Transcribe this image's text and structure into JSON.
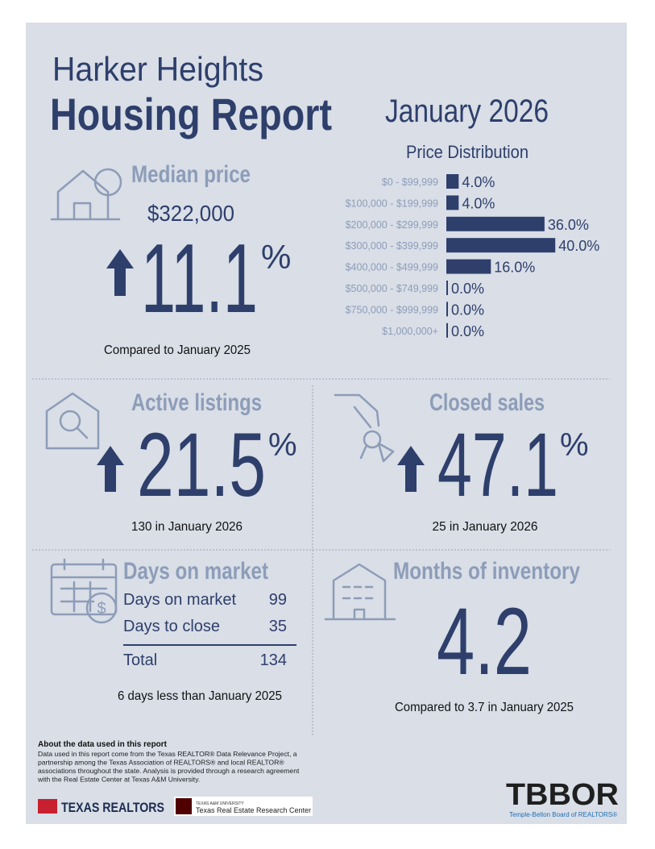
{
  "header": {
    "title_line1": "Harker Heights",
    "title_line2": "Housing Report",
    "period": "January 2026"
  },
  "median_price": {
    "label": "Median price",
    "price": "$322,000",
    "change": 11.1,
    "percent_sign": "%",
    "note": "Compared to January 2025"
  },
  "price_distribution": {
    "title": "Price Distribution",
    "categories": [
      "$0 - $99,999",
      "$100,000 - $199,999",
      "$200,000 - $299,999",
      "$300,000 - $399,999",
      "$400,000 - $499,999",
      "$500,000 - $749,999",
      "$750,000 - $999,999",
      "$1,000,000+"
    ],
    "values": [
      4.0,
      4.0,
      36.0,
      40.0,
      16.0,
      0.0,
      0.0,
      0.0
    ],
    "value_labels": [
      "4.0%",
      "4.0%",
      "36.0%",
      "40.0%",
      "16.0%",
      "0.0%",
      "0.0%",
      "0.0%"
    ],
    "color": "#2e3f6b"
  },
  "active_listings": {
    "label": "Active listings",
    "change": 21.5,
    "percent_sign": "%",
    "note": "130 in January 2026"
  },
  "closed_sales": {
    "label": "Closed sales",
    "change": 47.1,
    "percent_sign": "%",
    "note": "25 in January 2026"
  },
  "days_on_market": {
    "label": "Days on market",
    "rows": [
      [
        "Days on market",
        99
      ],
      [
        "Days to close",
        35
      ]
    ],
    "total": [
      "Total",
      134
    ],
    "note": "6 days less than January 2025"
  },
  "months_of_inventory": {
    "label": "Months of inventory",
    "value": 4.2,
    "note": "Compared to 3.7 in January 2025"
  },
  "footer": {
    "about_title": "About the data used in this report",
    "about_lines": [
      "Data used in this report come from the Texas REALTOR® Data Relevance Project, a",
      "partnership among the Texas Association of REALTORS® and local REALTOR®",
      "associations throughout the state. Analysis is provided through a research agreement",
      "with the Real Estate Center at Texas A&M University."
    ],
    "texas_realtors": "TEXAS REALTORS",
    "tamu": "TEXAS A&M UNIVERSITY",
    "research_center": "Texas Real Estate Research Center",
    "tbbor": "TBBOR",
    "tbbor_sub": "Temple-Belton Board of REALTORS®"
  }
}
